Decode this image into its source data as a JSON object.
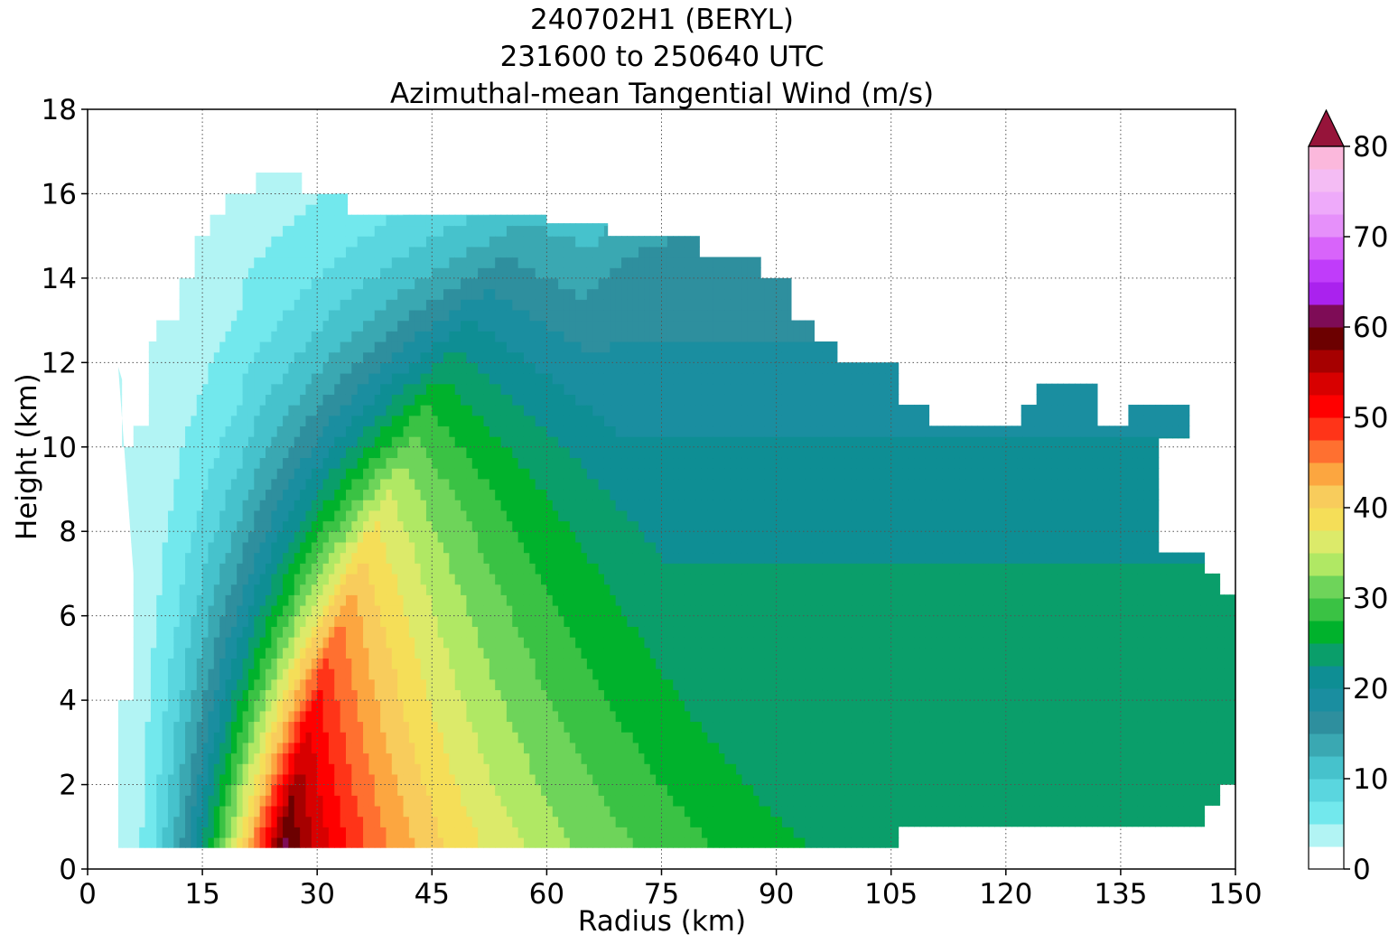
{
  "chart_data": {
    "type": "heatmap",
    "title": [
      "240702H1 (BERYL)",
      "231600 to 250640 UTC",
      "Azimuthal-mean Tangential Wind (m/s)"
    ],
    "xlabel": "Radius (km)",
    "ylabel": "Height (km)",
    "xlim": [
      0,
      150
    ],
    "ylim": [
      0,
      18
    ],
    "xticks": [
      0,
      15,
      30,
      45,
      60,
      75,
      90,
      105,
      120,
      135,
      150
    ],
    "yticks": [
      0,
      2,
      4,
      6,
      8,
      10,
      12,
      14,
      16,
      18
    ],
    "grid": true,
    "colorbar": {
      "label": "",
      "min": 0,
      "max": 80,
      "step": 2.5,
      "ticks": [
        0,
        10,
        20,
        30,
        40,
        50,
        60,
        70,
        80
      ],
      "extend": "max",
      "colors": [
        "#ffffff",
        "#b2f4f4",
        "#72e8ed",
        "#5ad6df",
        "#46c2cc",
        "#3aa8b2",
        "#2e8f9e",
        "#1a8ea0",
        "#0e8e94",
        "#0a9e6a",
        "#00b22c",
        "#3ac244",
        "#6ed45a",
        "#b0e864",
        "#dcea6a",
        "#f5de58",
        "#f8cc5c",
        "#fca640",
        "#ff7030",
        "#ff3418",
        "#ff0000",
        "#d80000",
        "#a60000",
        "#6c0000",
        "#7e0c56",
        "#aa22ee",
        "#c03cfa",
        "#d864fa",
        "#e690fa",
        "#eeaafa",
        "#f4bcf4",
        "#fbb8dc",
        "#ffaac6",
        "#ff98b2",
        "#ff8898",
        "#ff7684",
        "#ff6470",
        "#f24e5c",
        "#dc3a4c",
        "#c2263e",
        "#ae1a40",
        "#96143a"
      ]
    },
    "field": {
      "description_units": "m/s",
      "peak": {
        "radius_km": 25,
        "height_km": 1.0,
        "value": 56
      },
      "r_min_km": 4,
      "z_min_km": 0.5
    }
  }
}
